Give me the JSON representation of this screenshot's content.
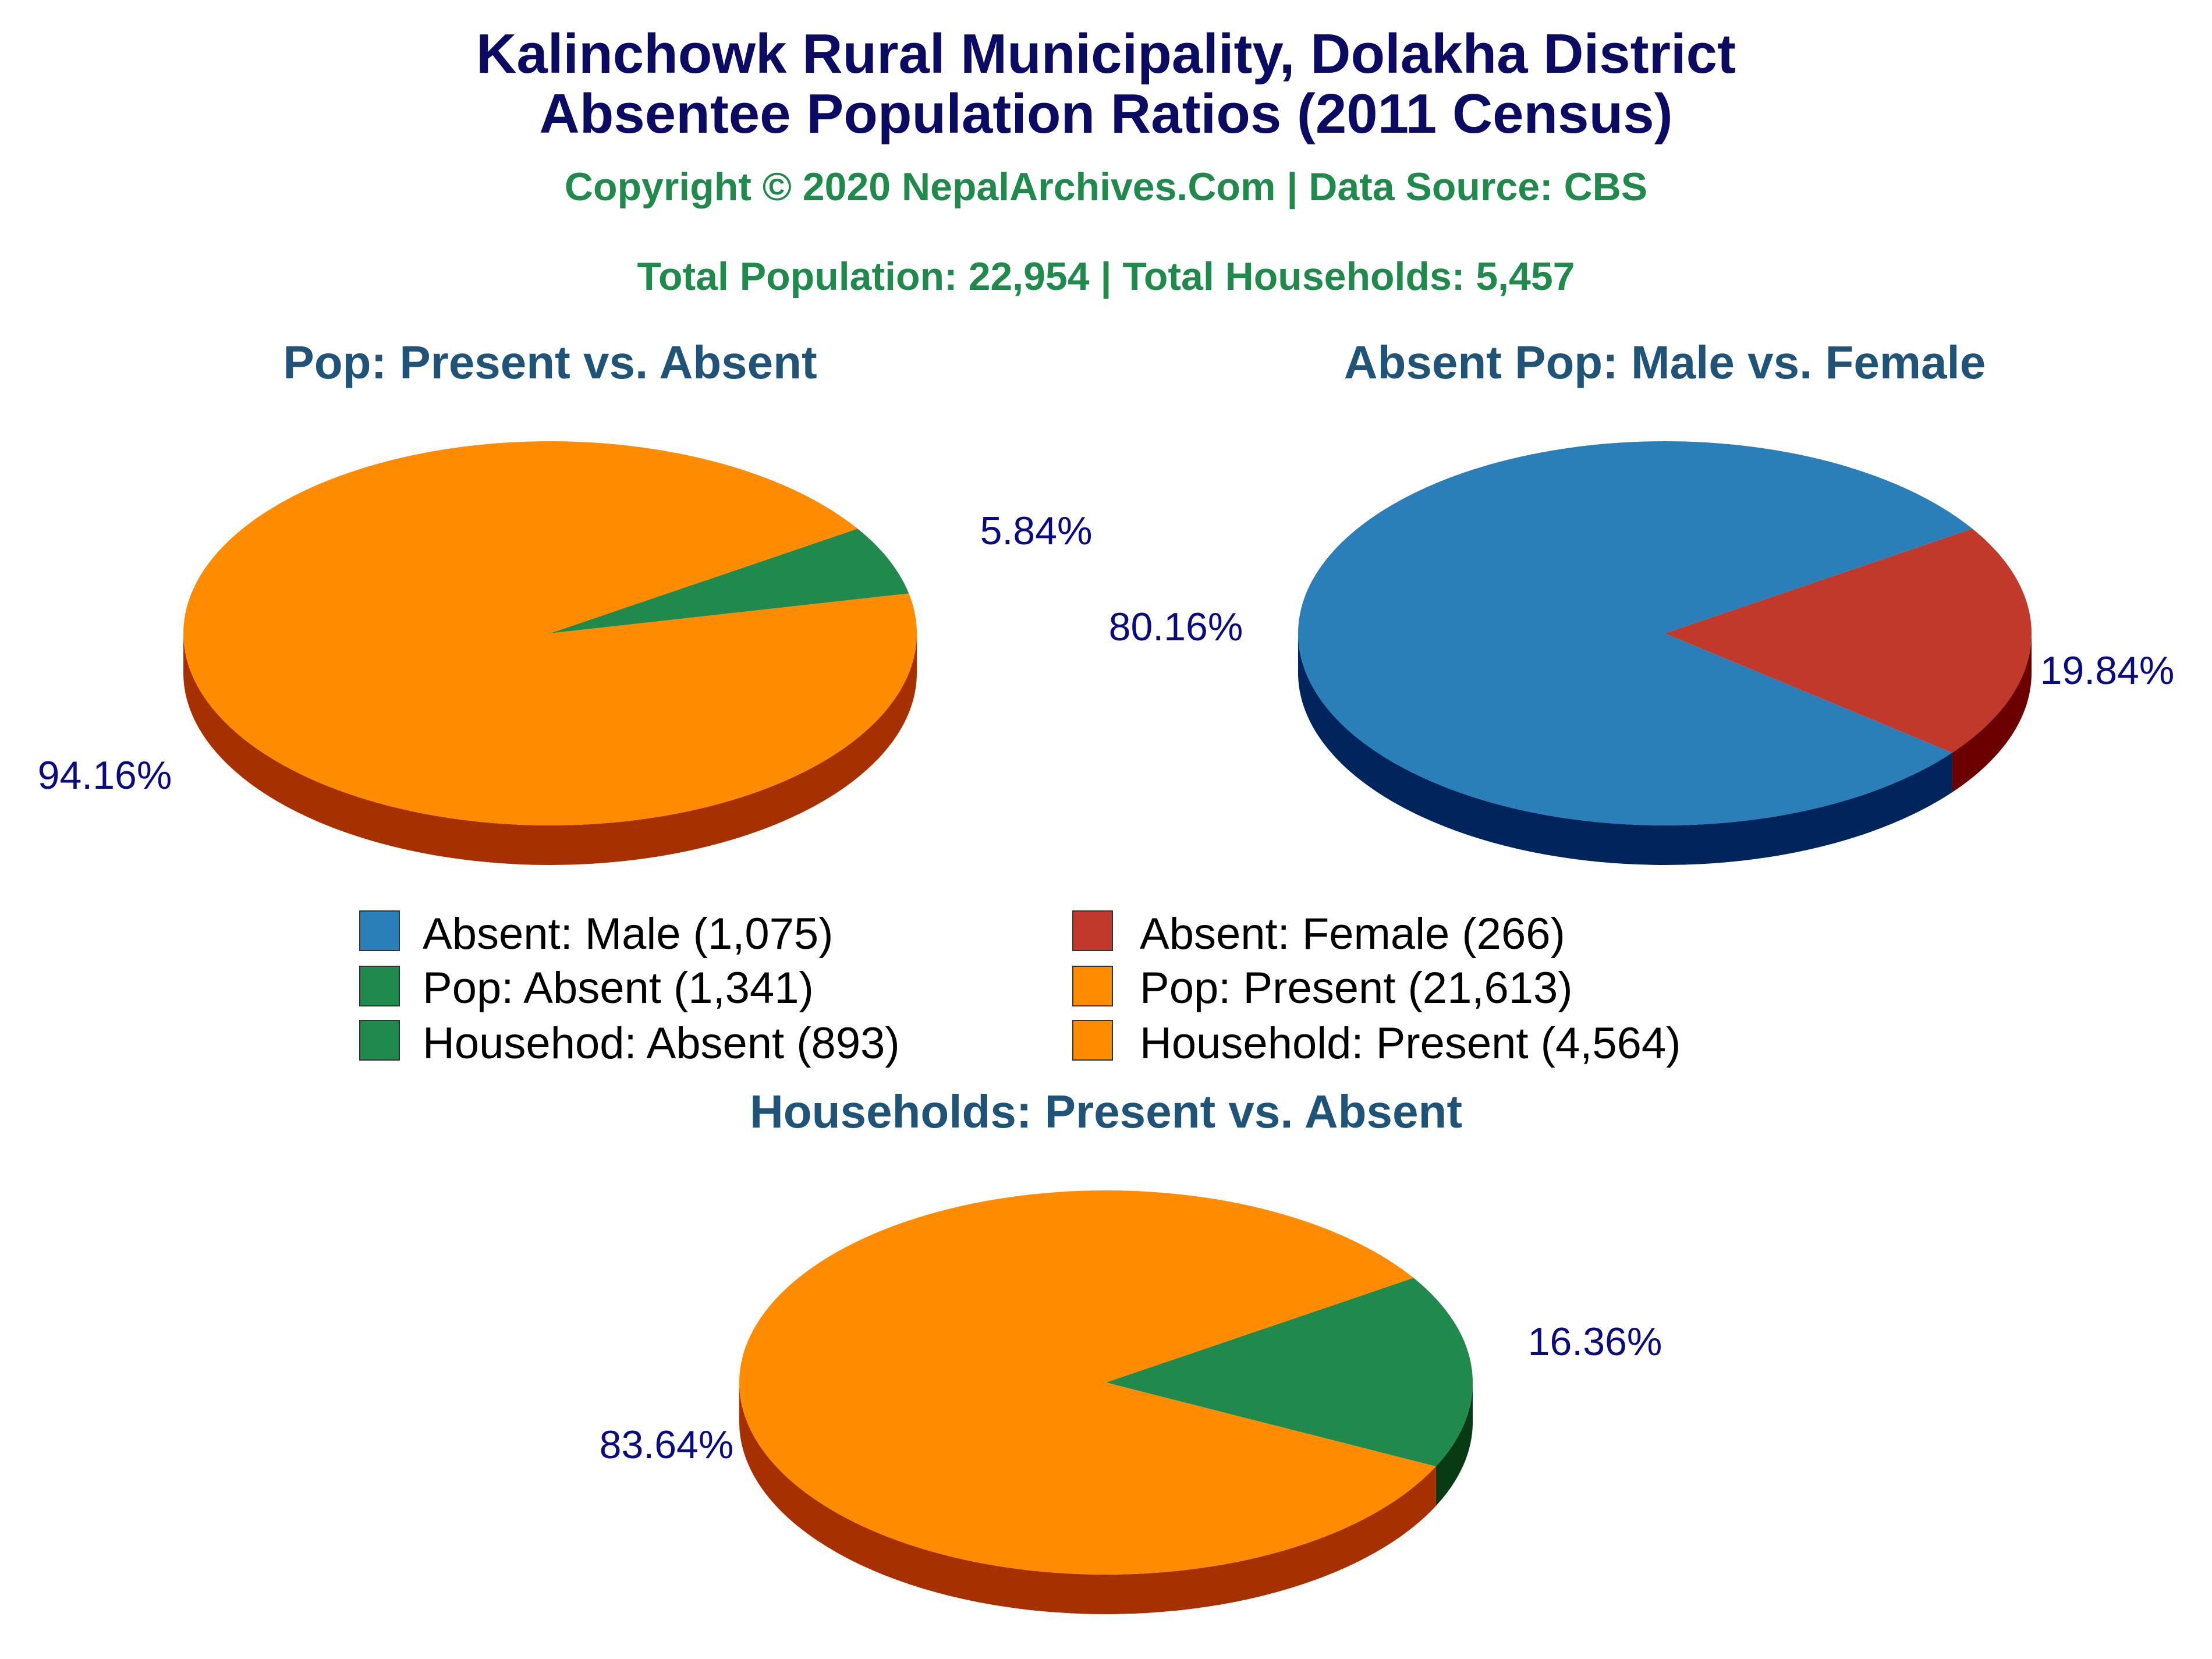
{
  "title": {
    "line1": "Kalinchowk Rural Municipality, Dolakha District",
    "line2": "Absentee Population Ratios (2011 Census)"
  },
  "copyright": "Copyright © 2020 NepalArchives.Com | Data Source: CBS",
  "totals": "Total Population: 22,954 | Total Households: 5,457",
  "legend": [
    {
      "label": "Absent: Male (1,075)",
      "color": "#2a7fb8"
    },
    {
      "label": "Absent: Female (266)",
      "color": "#c0392b"
    },
    {
      "label": "Pop: Absent (1,341)",
      "color": "#1f8a4c"
    },
    {
      "label": "Pop: Present (21,613)",
      "color": "#ff8c00"
    },
    {
      "label": "Househod: Absent (893)",
      "color": "#1f8a4c"
    },
    {
      "label": "Household: Present (4,564)",
      "color": "#ff8c00"
    }
  ],
  "chart_data": [
    {
      "type": "pie",
      "title": "Pop: Present vs. Absent",
      "slices": [
        {
          "label": "Pop: Absent",
          "value": 5.84,
          "display": "5.84%",
          "color": "#1f8a4c",
          "side_color": "#0f3d1f"
        },
        {
          "label": "Pop: Present",
          "value": 94.16,
          "display": "94.16%",
          "color": "#ff8c00",
          "side_color": "#a63000"
        }
      ]
    },
    {
      "type": "pie",
      "title": "Absent Pop: Male vs. Female",
      "slices": [
        {
          "label": "Absent: Female",
          "value": 19.84,
          "display": "19.84%",
          "color": "#c0392b",
          "side_color": "#6b0000"
        },
        {
          "label": "Absent: Male",
          "value": 80.16,
          "display": "80.16%",
          "color": "#2a7fb8",
          "side_color": "#00245c"
        }
      ]
    },
    {
      "type": "pie",
      "title": "Households: Present vs. Absent",
      "slices": [
        {
          "label": "Househod: Absent",
          "value": 16.36,
          "display": "16.36%",
          "color": "#1f8a4c",
          "side_color": "#083b14"
        },
        {
          "label": "Household: Present",
          "value": 83.64,
          "display": "83.64%",
          "color": "#ff8c00",
          "side_color": "#a63000"
        }
      ]
    }
  ]
}
